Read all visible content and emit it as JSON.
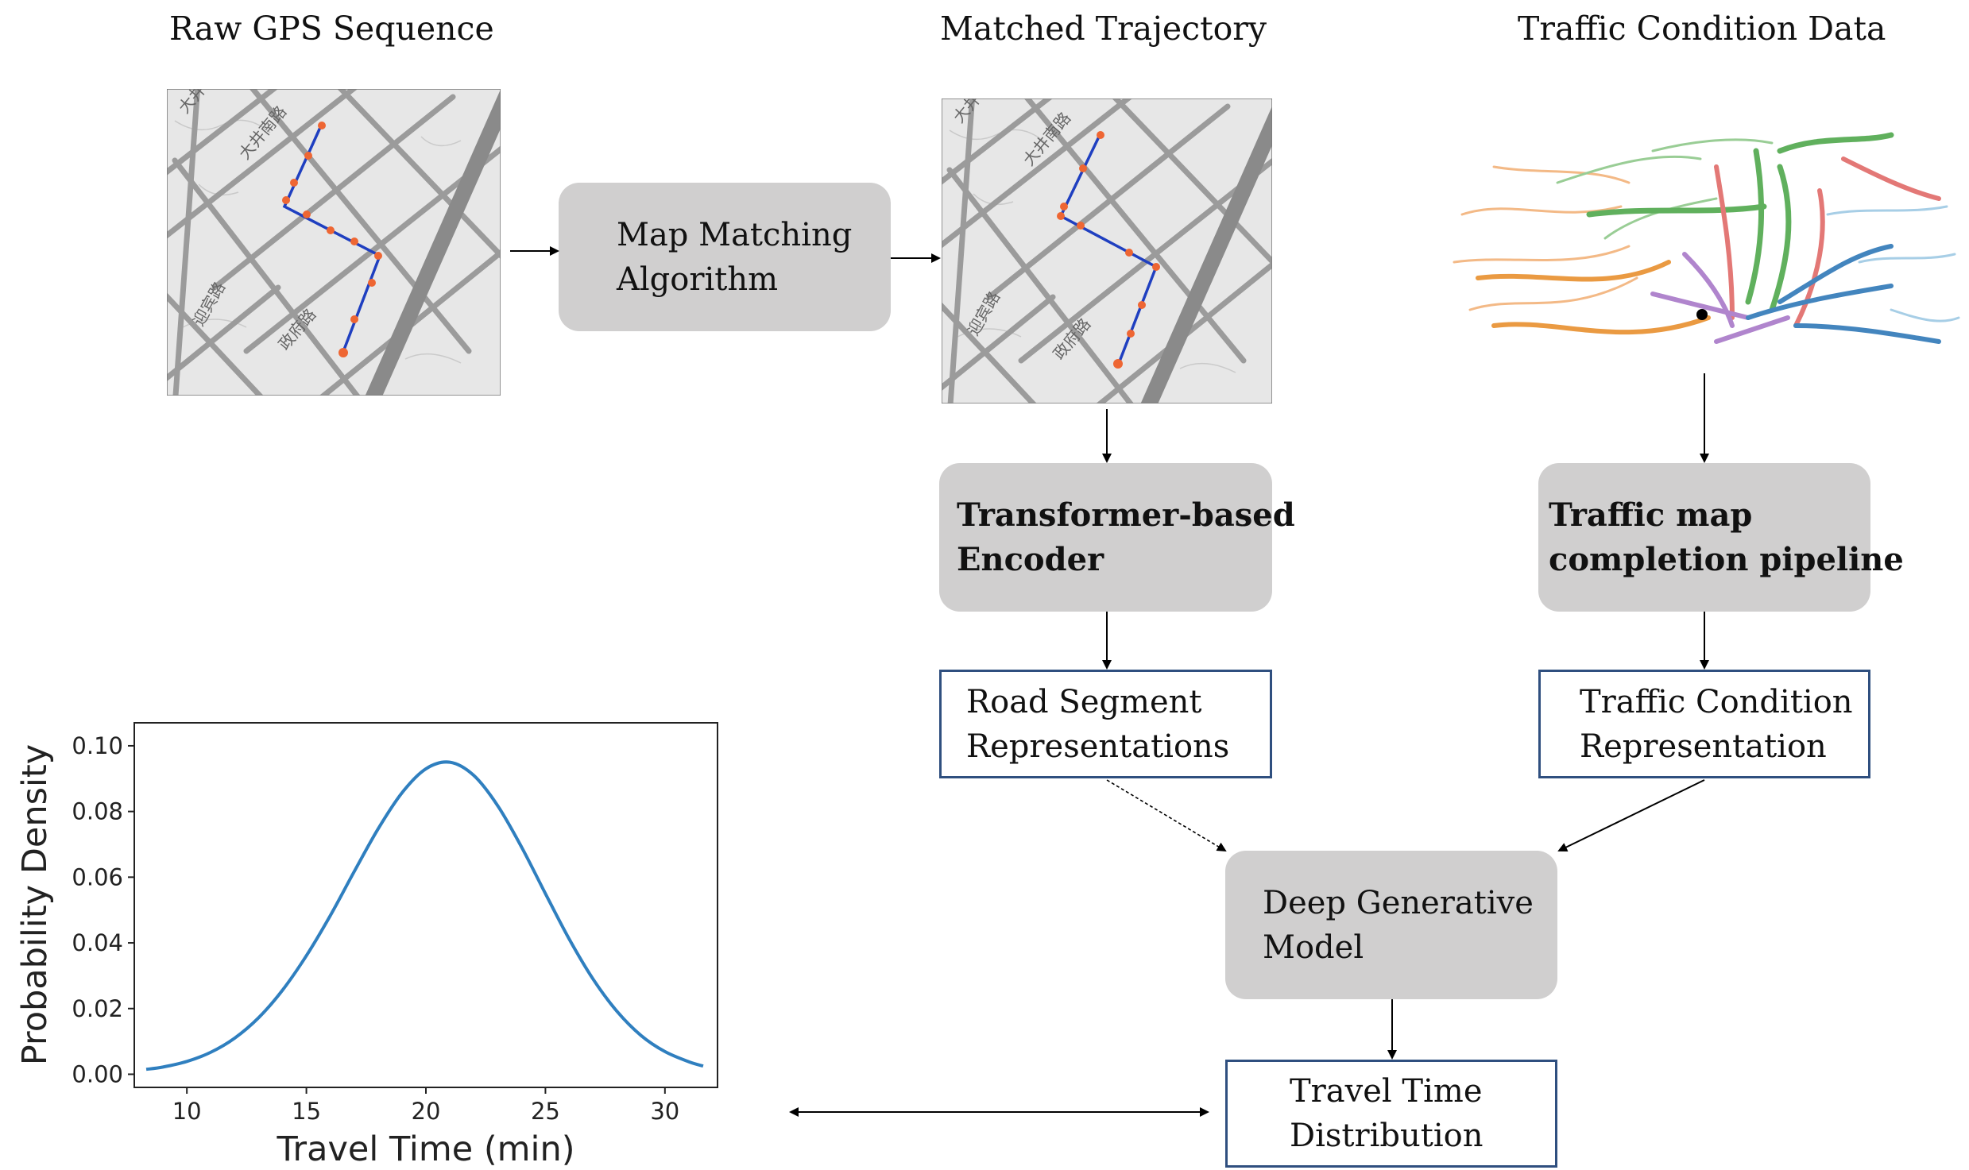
{
  "titles": {
    "raw_gps": "Raw GPS Sequence",
    "matched": "Matched Trajectory",
    "traffic": "Traffic Condition Data"
  },
  "boxes": {
    "map_matching": [
      "Map Matching",
      "Algorithm"
    ],
    "encoder": [
      "Transformer-based",
      "Encoder"
    ],
    "completion": [
      "Traffic map",
      "completion pipeline"
    ],
    "road_seg": [
      "Road Segment",
      "Representations"
    ],
    "traffic_rep": [
      "Traffic Condition",
      "Representation"
    ],
    "dgm": [
      "Deep Generative",
      "Model"
    ],
    "ttd": [
      "Travel Time",
      "Distribution"
    ]
  },
  "map_labels": {
    "street_a": "大井南路",
    "street_b": "政府路",
    "street_c": "迎宾路"
  },
  "colors": {
    "box_fill": "#d0cfcf",
    "box_border": "#2f4f7f",
    "curve": "#2f7fbf",
    "gps_point": "#ee6633",
    "route": "#1f3fc0"
  },
  "chart_data": {
    "type": "line",
    "xlabel": "Travel Time (min)",
    "ylabel": "Probability Density",
    "xlim": [
      7.8,
      32.2
    ],
    "ylim": [
      -0.004,
      0.107
    ],
    "xticks": [
      10,
      15,
      20,
      25,
      30
    ],
    "yticks": [
      0.0,
      0.02,
      0.04,
      0.06,
      0.08,
      0.1
    ],
    "ytick_labels": [
      "0.00",
      "0.02",
      "0.04",
      "0.06",
      "0.08",
      "0.10"
    ],
    "series": [
      {
        "x": [
          8.3,
          9,
          10,
          11,
          12,
          13,
          14,
          15,
          16,
          17,
          18,
          19,
          20,
          21,
          22,
          23,
          24,
          25,
          26,
          27,
          28,
          29,
          30,
          31,
          31.6
        ],
        "y": [
          0.0015,
          0.0022,
          0.0039,
          0.0067,
          0.011,
          0.0172,
          0.0256,
          0.0361,
          0.0483,
          0.0617,
          0.0747,
          0.0857,
          0.093,
          0.095,
          0.091,
          0.0818,
          0.0692,
          0.055,
          0.0411,
          0.0289,
          0.0191,
          0.0118,
          0.0069,
          0.0038,
          0.0025
        ]
      }
    ],
    "grid": false
  }
}
